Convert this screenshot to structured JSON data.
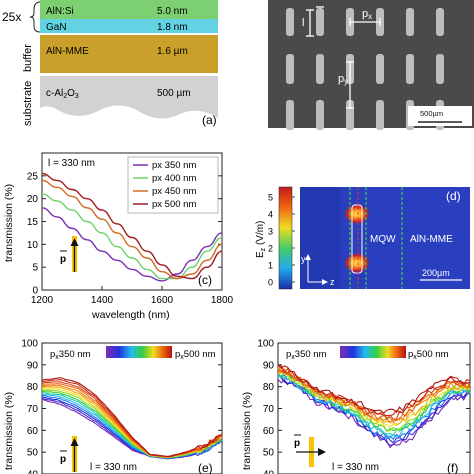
{
  "panel_a": {
    "repeat_label": "25x",
    "layers": [
      {
        "name": "AlN:Si",
        "thickness": "5.0 nm",
        "color": "#7cd072"
      },
      {
        "name": "GaN",
        "thickness": "1.8 nm",
        "color": "#63d3e3"
      },
      {
        "name": "AlN-MME",
        "thickness": "1.6 µm",
        "color": "#c9a02a"
      },
      {
        "name": "c-Al2O3",
        "thickness": "500 µm",
        "color": "#d2d2d2"
      }
    ],
    "side_labels": [
      "buffer",
      "substrate"
    ],
    "tag": "(a)"
  },
  "panel_b": {
    "labels": {
      "l": "l",
      "px": "px",
      "py": "py"
    },
    "scalebar": "500µm",
    "bg_color": "#4a4a4a"
  },
  "panel_c": {
    "tag": "(c)",
    "annotation": "l = 330 nm",
    "legend_prefix": "p",
    "legend_sub": "x",
    "polarization": "p",
    "colors": {
      "p350": "#7b2fb5",
      "p400": "#6bd36b",
      "p450": "#d06a22",
      "p500": "#a01c22"
    }
  },
  "panel_d": {
    "tag": "(d)",
    "cbar_label": "Ez (V/m)",
    "cbar_ticks": [
      "5",
      "4",
      "3",
      "2",
      "1",
      "0"
    ],
    "labels": {
      "mqw": "MQW",
      "aln": "AlN-MME",
      "scale": "200µm",
      "y": "y",
      "z": "z"
    }
  },
  "panel_e": {
    "tag": "(e)",
    "annotation": "l = 330 nm",
    "range_left": "350 nm",
    "range_right": "500 nm",
    "polarization": "p"
  },
  "panel_f": {
    "tag": "(f)",
    "annotation": "l = 330 nm",
    "range_left": "350 nm",
    "range_right": "500 nm",
    "polarization": "p"
  },
  "chart_data": [
    {
      "type": "line",
      "panel": "c",
      "xlabel": "wavelength (nm)",
      "ylabel": "transmission (%)",
      "xlim": [
        1200,
        1800
      ],
      "ylim": [
        0,
        30
      ],
      "x_ticks": [
        1200,
        1400,
        1600,
        1800
      ],
      "y_ticks": [
        0,
        5,
        10,
        15,
        20,
        25
      ],
      "series": [
        {
          "name": "px 350 nm",
          "color": "#7b2fb5",
          "x": [
            1200,
            1250,
            1300,
            1350,
            1400,
            1450,
            1500,
            1550,
            1600,
            1650,
            1700,
            1750,
            1800
          ],
          "y": [
            18,
            16,
            13.5,
            11,
            8.5,
            6.5,
            4.5,
            3,
            2,
            3.5,
            6.5,
            9.5,
            12.5
          ]
        },
        {
          "name": "px 400 nm",
          "color": "#6bd36b",
          "x": [
            1200,
            1250,
            1300,
            1350,
            1400,
            1450,
            1500,
            1550,
            1600,
            1650,
            1700,
            1750,
            1800
          ],
          "y": [
            21,
            19.5,
            17.5,
            15,
            12.5,
            9.5,
            7,
            4.5,
            2.5,
            2.5,
            5,
            8.5,
            11.5
          ]
        },
        {
          "name": "px 450 nm",
          "color": "#d06a22",
          "x": [
            1200,
            1250,
            1300,
            1350,
            1400,
            1450,
            1500,
            1550,
            1600,
            1650,
            1700,
            1750,
            1800
          ],
          "y": [
            24,
            22.5,
            20.5,
            18,
            15.5,
            12.5,
            9.5,
            7,
            4,
            2.5,
            3.5,
            6.5,
            10
          ]
        },
        {
          "name": "px 500 nm",
          "color": "#a01c22",
          "x": [
            1200,
            1250,
            1300,
            1350,
            1400,
            1450,
            1500,
            1550,
            1600,
            1650,
            1700,
            1750,
            1800
          ],
          "y": [
            25.5,
            24,
            22,
            20,
            17.5,
            14.5,
            11.5,
            8.5,
            5.5,
            3,
            2.5,
            5,
            8.5
          ]
        }
      ]
    },
    {
      "type": "line",
      "panel": "e",
      "ylabel": "transmission (%)",
      "ylim": [
        40,
        100
      ],
      "y_ticks": [
        40,
        50,
        60,
        70,
        80,
        90,
        100
      ],
      "x_norm": [
        0,
        0.1,
        0.2,
        0.3,
        0.4,
        0.5,
        0.6,
        0.7,
        0.8,
        0.9,
        1
      ],
      "series_top": [
        83,
        84,
        82,
        76,
        67,
        57,
        49,
        48,
        50,
        53,
        58
      ],
      "series_bottom": [
        74,
        72,
        68,
        63,
        57,
        51,
        48,
        47,
        48,
        50,
        55
      ],
      "n_series": 15
    },
    {
      "type": "line",
      "panel": "f",
      "ylabel": "transmission (%)",
      "ylim": [
        40,
        100
      ],
      "y_ticks": [
        40,
        50,
        60,
        70,
        80,
        90,
        100
      ],
      "x_norm": [
        0,
        0.1,
        0.2,
        0.3,
        0.4,
        0.5,
        0.6,
        0.7,
        0.8,
        0.9,
        1
      ],
      "series_top": [
        90,
        85,
        79,
        76,
        73,
        69,
        68,
        73,
        80,
        84,
        82
      ],
      "series_bottom": [
        84,
        80,
        73,
        70,
        65,
        57,
        53,
        57,
        66,
        74,
        76
      ],
      "n_series": 15
    }
  ]
}
